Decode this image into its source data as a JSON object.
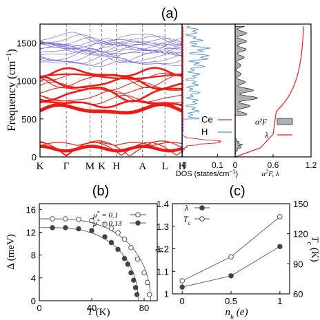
{
  "panel_labels": {
    "a": "(a)",
    "b": "(b)",
    "c": "(c)"
  },
  "colors": {
    "ce": "#e8201c",
    "h": "#4a8fe0",
    "band_blue": "#7f6fd6",
    "band_red": "#ec1c14",
    "a2f_fill": "#b0b0b0",
    "lambda": "#e8201c",
    "dark": "#444444"
  },
  "chart_data": [
    {
      "id": "a-bands",
      "type": "line",
      "ylabel": "Frequency (cm⁻¹)",
      "ylim": [
        0,
        1750
      ],
      "yticks": [
        0,
        500,
        1000,
        1500
      ],
      "kpoints": [
        {
          "label": "K",
          "pos": 0
        },
        {
          "label": "Γ",
          "pos": 1
        },
        {
          "label": "M",
          "pos": 1.9
        },
        {
          "label": "K",
          "pos": 2.35
        },
        {
          "label": "H",
          "pos": 2.9
        },
        {
          "label": "A",
          "pos": 3.9
        },
        {
          "label": "L",
          "pos": 4.75
        },
        {
          "label": "H",
          "pos": 5.4
        }
      ]
    },
    {
      "id": "a-dos",
      "type": "line",
      "xlabel": "DOS (states/cm⁻¹)",
      "xlim": [
        0,
        0.15
      ],
      "xticks": [
        {
          "v": 0,
          "label": "0"
        },
        {
          "v": 0.1,
          "label": "0.1"
        }
      ],
      "series": [
        {
          "name": "Ce"
        },
        {
          "name": "H"
        }
      ]
    },
    {
      "id": "a-a2f",
      "type": "area",
      "xlabel": "α²F, λ",
      "xlim": [
        0,
        1.2
      ],
      "xticks": [
        {
          "v": 0,
          "label": "0"
        },
        {
          "v": 0.6,
          "label": "0.6"
        },
        {
          "v": 1.2,
          "label": "1.2"
        }
      ],
      "series": [
        {
          "name": "α²F"
        },
        {
          "name": "λ"
        }
      ]
    },
    {
      "id": "b",
      "type": "scatter",
      "xlabel": "T (K)",
      "ylabel": "Δ (meV)",
      "xlim": [
        0,
        90
      ],
      "ylim": [
        0,
        17
      ],
      "xticks": [
        0,
        40,
        80
      ],
      "yticks": [
        0,
        4,
        8,
        12,
        16
      ],
      "series": [
        {
          "name": "μ* = 0.1",
          "style": "open",
          "x": [
            10,
            20,
            30,
            40,
            50,
            55,
            60,
            65,
            70,
            75,
            80,
            82.5,
            84
          ],
          "y": [
            14.35,
            14.35,
            14.25,
            14.05,
            13.4,
            12.7,
            11.9,
            10.8,
            9.3,
            7.3,
            4.9,
            3.2,
            1.1
          ]
        },
        {
          "name": "μ* = 0.13",
          "style": "filled",
          "x": [
            10,
            20,
            30,
            40,
            50,
            55,
            60,
            65,
            67.5,
            70,
            72,
            73.5,
            74.5
          ],
          "y": [
            12.8,
            12.8,
            12.6,
            12.3,
            11.2,
            10.2,
            9.0,
            7.4,
            6.4,
            4.9,
            3.6,
            2.3,
            1.1
          ]
        }
      ]
    },
    {
      "id": "c",
      "type": "line",
      "xlabel": "n_h (e)",
      "ylabel": "λ",
      "ylabel_right": "T_c (K)",
      "x": [
        0,
        0.5,
        1
      ],
      "xlim": [
        -0.1,
        1.1
      ],
      "ylim": [
        1.0,
        1.4
      ],
      "ylim_right": [
        60,
        150
      ],
      "xticks": [
        0,
        0.5,
        1
      ],
      "yticks": [
        1.0,
        1.1,
        1.2,
        1.3,
        1.4
      ],
      "yticks_right": [
        60,
        90,
        120,
        150
      ],
      "series": [
        {
          "name": "λ",
          "axis": "left",
          "style": "filled",
          "values": [
            1.03,
            1.08,
            1.21
          ]
        },
        {
          "name": "T_c",
          "axis": "right",
          "style": "open",
          "values": [
            73,
            97,
            137
          ]
        }
      ]
    }
  ]
}
